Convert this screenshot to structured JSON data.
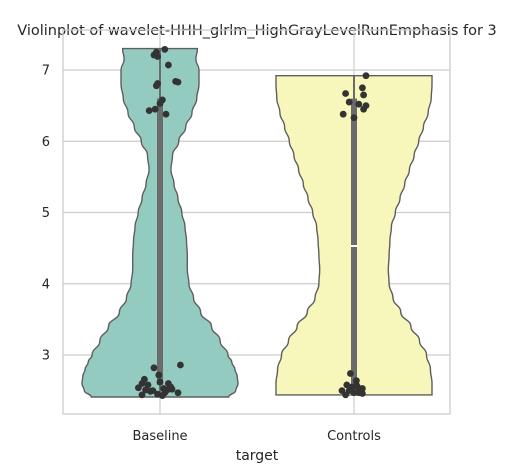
{
  "chart_data": {
    "type": "violin",
    "title": "Violinplot of wavelet-HHH_glrlm_HighGrayLevelRunEmphasis for 3",
    "xlabel": "target",
    "ylabel": "",
    "ylim": [
      2.2,
      7.5
    ],
    "yticks": [
      "3",
      "4",
      "5",
      "6",
      "7"
    ],
    "grid": true,
    "colors": {
      "Baseline": "#94cbc0",
      "Controls": "#f7f7bb",
      "points": "#333333"
    },
    "categories": [
      "Baseline",
      "Controls"
    ],
    "series": [
      {
        "category": "Baseline",
        "min": 2.41,
        "max": 7.3,
        "q1": 2.58,
        "median": 2.62,
        "q3": 6.6,
        "density": [
          [
            2.41,
            0.88
          ],
          [
            2.5,
            0.97
          ],
          [
            2.6,
            1.0
          ],
          [
            2.7,
            0.99
          ],
          [
            2.8,
            0.96
          ],
          [
            2.9,
            0.92
          ],
          [
            3.0,
            0.87
          ],
          [
            3.2,
            0.77
          ],
          [
            3.4,
            0.66
          ],
          [
            3.6,
            0.52
          ],
          [
            3.8,
            0.43
          ],
          [
            4.0,
            0.37
          ],
          [
            4.2,
            0.35
          ],
          [
            4.4,
            0.35
          ],
          [
            4.6,
            0.34
          ],
          [
            4.8,
            0.32
          ],
          [
            5.0,
            0.28
          ],
          [
            5.2,
            0.23
          ],
          [
            5.4,
            0.18
          ],
          [
            5.6,
            0.14
          ],
          [
            5.8,
            0.16
          ],
          [
            6.0,
            0.24
          ],
          [
            6.2,
            0.33
          ],
          [
            6.4,
            0.41
          ],
          [
            6.6,
            0.47
          ],
          [
            6.8,
            0.5
          ],
          [
            7.0,
            0.5
          ],
          [
            7.15,
            0.46
          ],
          [
            7.3,
            0.48
          ]
        ],
        "points": [
          [
            0.04,
            7.29
          ],
          [
            -0.03,
            7.25
          ],
          [
            -0.05,
            7.21
          ],
          [
            -0.02,
            7.19
          ],
          [
            0.07,
            7.07
          ],
          [
            0.13,
            6.84
          ],
          [
            0.15,
            6.83
          ],
          [
            -0.02,
            6.81
          ],
          [
            -0.03,
            6.78
          ],
          [
            0.02,
            6.58
          ],
          [
            0.0,
            6.53
          ],
          [
            -0.09,
            6.43
          ],
          [
            0.05,
            6.38
          ],
          [
            -0.04,
            6.45
          ],
          [
            -0.05,
            2.82
          ],
          [
            0.17,
            2.86
          ],
          [
            -0.01,
            2.72
          ],
          [
            -0.13,
            2.66
          ],
          [
            -0.15,
            2.6
          ],
          [
            -0.1,
            2.58
          ],
          [
            0.0,
            2.62
          ],
          [
            0.07,
            2.6
          ],
          [
            0.09,
            2.55
          ],
          [
            -0.18,
            2.54
          ],
          [
            -0.12,
            2.51
          ],
          [
            -0.08,
            2.49
          ],
          [
            0.03,
            2.53
          ],
          [
            0.06,
            2.51
          ],
          [
            -0.15,
            2.44
          ],
          [
            0.02,
            2.43
          ],
          [
            0.15,
            2.47
          ],
          [
            -0.06,
            2.5
          ],
          [
            0.1,
            2.52
          ],
          [
            0.04,
            2.47
          ],
          [
            -0.02,
            2.45
          ]
        ]
      },
      {
        "category": "Controls",
        "min": 2.44,
        "max": 6.92,
        "q1": 2.52,
        "median": 4.53,
        "q3": 6.6,
        "density": [
          [
            2.44,
            1.0
          ],
          [
            2.6,
            1.0
          ],
          [
            2.8,
            0.98
          ],
          [
            3.0,
            0.93
          ],
          [
            3.2,
            0.84
          ],
          [
            3.4,
            0.73
          ],
          [
            3.6,
            0.6
          ],
          [
            3.8,
            0.5
          ],
          [
            4.0,
            0.45
          ],
          [
            4.2,
            0.44
          ],
          [
            4.4,
            0.45
          ],
          [
            4.6,
            0.46
          ],
          [
            4.8,
            0.48
          ],
          [
            5.0,
            0.53
          ],
          [
            5.2,
            0.59
          ],
          [
            5.4,
            0.65
          ],
          [
            5.6,
            0.71
          ],
          [
            5.8,
            0.77
          ],
          [
            6.0,
            0.83
          ],
          [
            6.2,
            0.89
          ],
          [
            6.4,
            0.95
          ],
          [
            6.6,
            0.99
          ],
          [
            6.8,
            1.0
          ],
          [
            6.92,
            1.0
          ]
        ],
        "points": [
          [
            0.1,
            6.92
          ],
          [
            0.07,
            6.75
          ],
          [
            -0.07,
            6.67
          ],
          [
            0.08,
            6.65
          ],
          [
            -0.04,
            6.55
          ],
          [
            0.04,
            6.52
          ],
          [
            0.1,
            6.5
          ],
          [
            0.08,
            6.45
          ],
          [
            -0.09,
            6.38
          ],
          [
            0.0,
            6.33
          ],
          [
            -0.03,
            2.74
          ],
          [
            0.02,
            2.64
          ],
          [
            -0.06,
            2.58
          ],
          [
            0.02,
            2.58
          ],
          [
            -0.02,
            2.55
          ],
          [
            0.03,
            2.55
          ],
          [
            0.07,
            2.53
          ],
          [
            -0.1,
            2.5
          ],
          [
            0.05,
            2.49
          ],
          [
            -0.04,
            2.5
          ],
          [
            0.0,
            2.47
          ],
          [
            0.04,
            2.47
          ],
          [
            0.07,
            2.46
          ],
          [
            -0.07,
            2.44
          ]
        ]
      }
    ]
  }
}
